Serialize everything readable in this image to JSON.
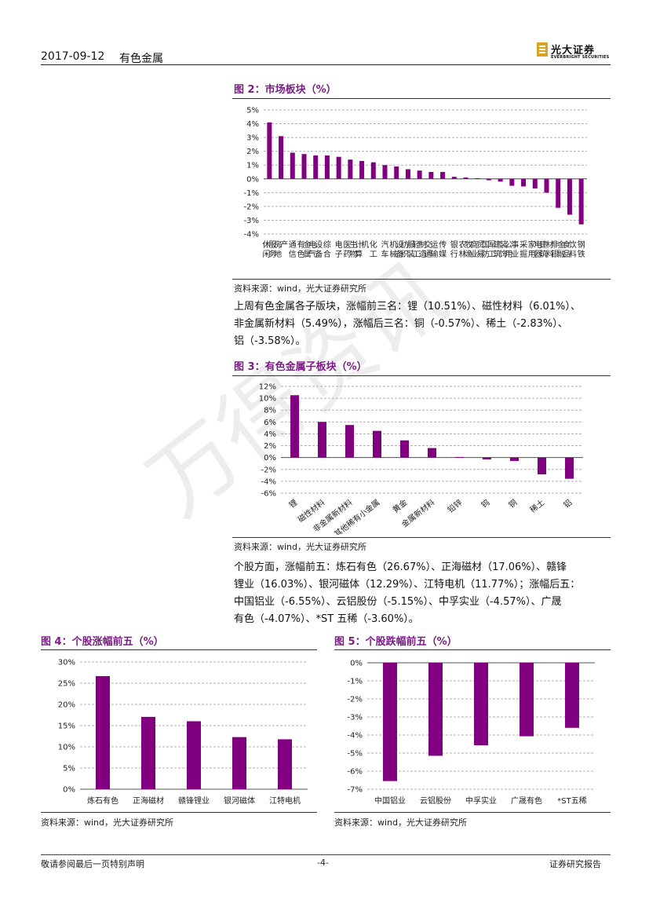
{
  "header": {
    "date": "2017-09-12",
    "sector": "有色金属",
    "logo_cn": "光大证券",
    "logo_en": "EVERBRIGHT SECURITIES"
  },
  "watermark": "万得资讯",
  "fig2": {
    "title": "图 2：市场板块（%）",
    "source": "资料来源：wind，光大证券研究所"
  },
  "para1": {
    "line1": "上周有色金属各子版块，涨幅前三名：锂（10.51%）、磁性材料（6.01%）、",
    "line2": "非金属新材料（5.49%），涨幅后三名：铜（-0.57%）、稀土（-2.83%）、",
    "line3": "铝（-3.58%）。"
  },
  "fig3": {
    "title": "图 3：有色金属子板块（%）",
    "source": "资料来源：wind，光大证券研究所"
  },
  "para2": {
    "line1": "个股方面，涨幅前五：炼石有色（26.67%）、正海磁材（17.06%）、赣锋",
    "line2": "锂业（16.03%）、银河磁体（12.29%）、江特电机（11.77%）；涨幅后五：",
    "line3": "中国铝业（-6.55%）、云铝股份（-5.15%）、中孚实业（-4.57%）、广晟",
    "line4": "有色（-4.07%）、*ST 五稀（-3.60%）。"
  },
  "fig4": {
    "title": "图 4：个股涨幅前五（%）",
    "source": "资料来源：wind，光大证券研究所"
  },
  "fig5": {
    "title": "图 5：个股跌幅前五（%）",
    "source": "资料来源：wind，光大证券研究所"
  },
  "footer": {
    "disclaimer": "敬请参阅最后一页特别声明",
    "page": "-4-",
    "doc_type": "证券研究报告"
  },
  "colors": {
    "bar": "#800080",
    "title": "#7b1c86"
  },
  "chart_data": [
    {
      "id": "fig2",
      "type": "bar",
      "categories": [
        "休闲服务",
        "房地产",
        "通信",
        "有色金属",
        "电气设备",
        "综合",
        "电子",
        "医药生物",
        "计算机",
        "化工",
        "汽车",
        "机械设备",
        "纺织服装",
        "轻工制造",
        "交通运输",
        "传媒",
        "银行",
        "农林牧渔",
        "商业贸易",
        "国防军工",
        "建筑装饰",
        "公用事业",
        "采掘",
        "家用电器",
        "建筑材料",
        "非银金融",
        "食品饮料",
        "钢铁"
      ],
      "values": [
        4.1,
        3.1,
        1.9,
        1.8,
        1.7,
        1.7,
        1.6,
        1.4,
        1.3,
        1.2,
        1.0,
        0.9,
        0.7,
        0.6,
        0.5,
        0.5,
        0.15,
        0.1,
        0.05,
        -0.1,
        -0.2,
        -0.5,
        -0.55,
        -0.7,
        -1.0,
        -2.1,
        -2.6,
        -3.3
      ],
      "ylim": [
        -4,
        5
      ],
      "yticks": [
        "-4%",
        "-3%",
        "-2%",
        "-1%",
        "0%",
        "1%",
        "2%",
        "3%",
        "4%",
        "5%"
      ],
      "grid": true
    },
    {
      "id": "fig3",
      "type": "bar",
      "categories": [
        "锂",
        "磁性材料",
        "非金属新材料",
        "其他稀有小金属",
        "黄金",
        "金属新材料",
        "铅锌",
        "钨",
        "铜",
        "稀土",
        "铝"
      ],
      "values": [
        10.51,
        6.01,
        5.49,
        4.5,
        2.9,
        1.6,
        0.1,
        -0.3,
        -0.57,
        -2.83,
        -3.58
      ],
      "ylim": [
        -6,
        12
      ],
      "yticks": [
        "-6%",
        "-4%",
        "-2%",
        "0%",
        "2%",
        "4%",
        "6%",
        "8%",
        "10%",
        "12%"
      ],
      "grid": true
    },
    {
      "id": "fig4",
      "type": "bar",
      "categories": [
        "炼石有色",
        "正海磁材",
        "赣锋锂业",
        "银河磁体",
        "江特电机"
      ],
      "values": [
        26.67,
        17.06,
        16.03,
        12.29,
        11.77
      ],
      "ylim": [
        0,
        30
      ],
      "yticks": [
        "0%",
        "5%",
        "10%",
        "15%",
        "20%",
        "25%",
        "30%"
      ],
      "grid": true
    },
    {
      "id": "fig5",
      "type": "bar",
      "categories": [
        "中国铝业",
        "云铝股份",
        "中孚实业",
        "广晟有色",
        "*ST五稀"
      ],
      "values": [
        -6.55,
        -5.15,
        -4.57,
        -4.07,
        -3.6
      ],
      "ylim": [
        -7,
        0
      ],
      "yticks": [
        "-7%",
        "-6%",
        "-5%",
        "-4%",
        "-3%",
        "-2%",
        "-1%",
        "0%"
      ],
      "grid": true
    }
  ]
}
